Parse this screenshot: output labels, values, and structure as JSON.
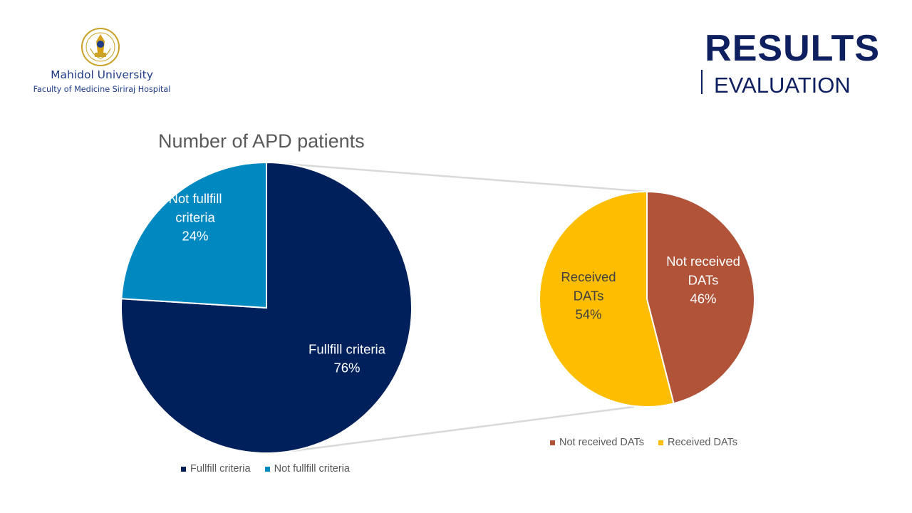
{
  "logo": {
    "name": "Mahidol University",
    "faculty": "Faculty of Medicine Siriraj Hospital"
  },
  "heading": {
    "title": "RESULTS",
    "subtitle": "EVALUATION"
  },
  "colors": {
    "navy": "#00205b",
    "teal": "#0088c0",
    "rust": "#b05338",
    "gold": "#fdbd00",
    "heading": "#0f2060",
    "connector": "#d9d9d9"
  },
  "chart_data": [
    {
      "type": "pie",
      "title": "Number of APD patients",
      "slices": [
        {
          "label": "Fullfill criteria",
          "value": 76,
          "color": "#00205b",
          "data_label": [
            "Fullfill criteria",
            "76%"
          ]
        },
        {
          "label": "Not fullfill criteria",
          "value": 24,
          "color": "#0088c0",
          "data_label": [
            "Not fullfill",
            "criteria",
            "24%"
          ]
        }
      ],
      "legend": [
        "Fullfill criteria",
        "Not fullfill criteria"
      ],
      "legend_position": "bottom"
    },
    {
      "type": "pie",
      "title": "",
      "slices": [
        {
          "label": "Not received DATs",
          "value": 46,
          "color": "#b05338",
          "data_label": [
            "Not received",
            "DATs",
            "46%"
          ]
        },
        {
          "label": "Received DATs",
          "value": 54,
          "color": "#fdbd00",
          "data_label": [
            "Received",
            "DATs",
            "54%"
          ]
        }
      ],
      "legend": [
        "Not received DATs",
        "Received DATs"
      ],
      "legend_position": "bottom"
    }
  ]
}
